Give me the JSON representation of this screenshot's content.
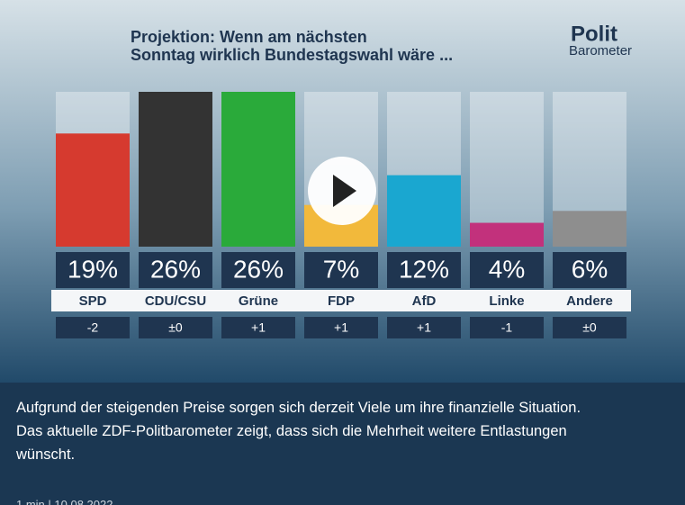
{
  "chart_data": {
    "type": "bar",
    "title": [
      "Projektion: Wenn am nächsten",
      "Sonntag wirklich Bundestagswahl wäre ..."
    ],
    "categories": [
      "SPD",
      "CDU/CSU",
      "Grüne",
      "FDP",
      "AfD",
      "Linke",
      "Andere"
    ],
    "values": [
      19,
      26,
      26,
      7,
      12,
      4,
      6
    ],
    "value_labels": [
      "19%",
      "26%",
      "26%",
      "7%",
      "12%",
      "4%",
      "6%"
    ],
    "changes": [
      "-2",
      "±0",
      "+1",
      "+1",
      "+1",
      "-1",
      "±0"
    ],
    "colors": [
      "#d63a2f",
      "#333333",
      "#2aaa3a",
      "#f2b93b",
      "#1aa7d0",
      "#c2317c",
      "#8e8e8e"
    ],
    "ylim": [
      0,
      26
    ]
  },
  "logo": [
    "Polit",
    "Barometer"
  ],
  "caption": [
    "Aufgrund der steigenden Preise sorgen sich derzeit Viele um ihre finanzielle Situation.",
    "Das aktuelle ZDF-Politbarometer zeigt, dass sich die Mehrheit weitere Entlastungen",
    "wünscht."
  ],
  "meta": "1 min | 10.08.2022"
}
